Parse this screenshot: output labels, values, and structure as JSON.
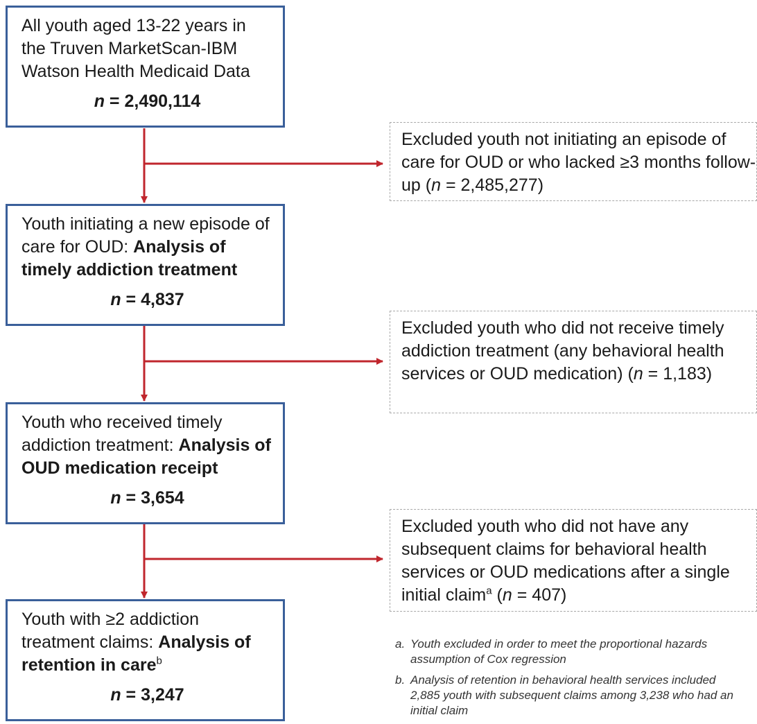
{
  "boxes": [
    {
      "pre": "All youth aged 13-22 years in the Truven MarketScan-IBM Watson Health Medicaid Data",
      "bold": "",
      "sup": "",
      "n": "2,490,114"
    },
    {
      "pre": "Youth initiating a new episode of care for OUD: ",
      "bold": "Analysis of timely addiction treatment",
      "sup": "",
      "n": "4,837"
    },
    {
      "pre": "Youth who received timely addiction treatment: ",
      "bold": "Analysis of OUD medication receipt",
      "sup": "",
      "n": "3,654"
    },
    {
      "pre": "Youth with ≥2 addiction treatment claims: ",
      "bold": "Analysis of retention in care",
      "sup": "b",
      "n": "3,247"
    }
  ],
  "exclusions": [
    {
      "pre": "Excluded youth not initiating an episode of care for OUD or who lacked ≥3 months follow-up (",
      "sup": "",
      "post": " = 2,485,277)"
    },
    {
      "pre": "Excluded youth who did not receive timely addiction treatment (any behavioral health services or OUD medication) (",
      "sup": "",
      "post": " = 1,183)"
    },
    {
      "pre": "Excluded youth who did not have any subsequent claims for behavioral health services or OUD medications after a single initial claim",
      "sup": "a",
      "post": " = 407)"
    }
  ],
  "n_symbol": "n",
  "n_equals": " = ",
  "paren_open": " (",
  "notes": [
    {
      "label": "a.",
      "text": "Youth excluded in order to meet the proportional hazards assumption of Cox regression"
    },
    {
      "label": "b.",
      "text": "Analysis of retention in behavioral health services included 2,885 youth with subsequent claims among 3,238 who had an initial claim"
    }
  ],
  "colors": {
    "box_border": "#3a5f9a",
    "arrow": "#c0262d",
    "excl_border": "#a8a8a8"
  }
}
